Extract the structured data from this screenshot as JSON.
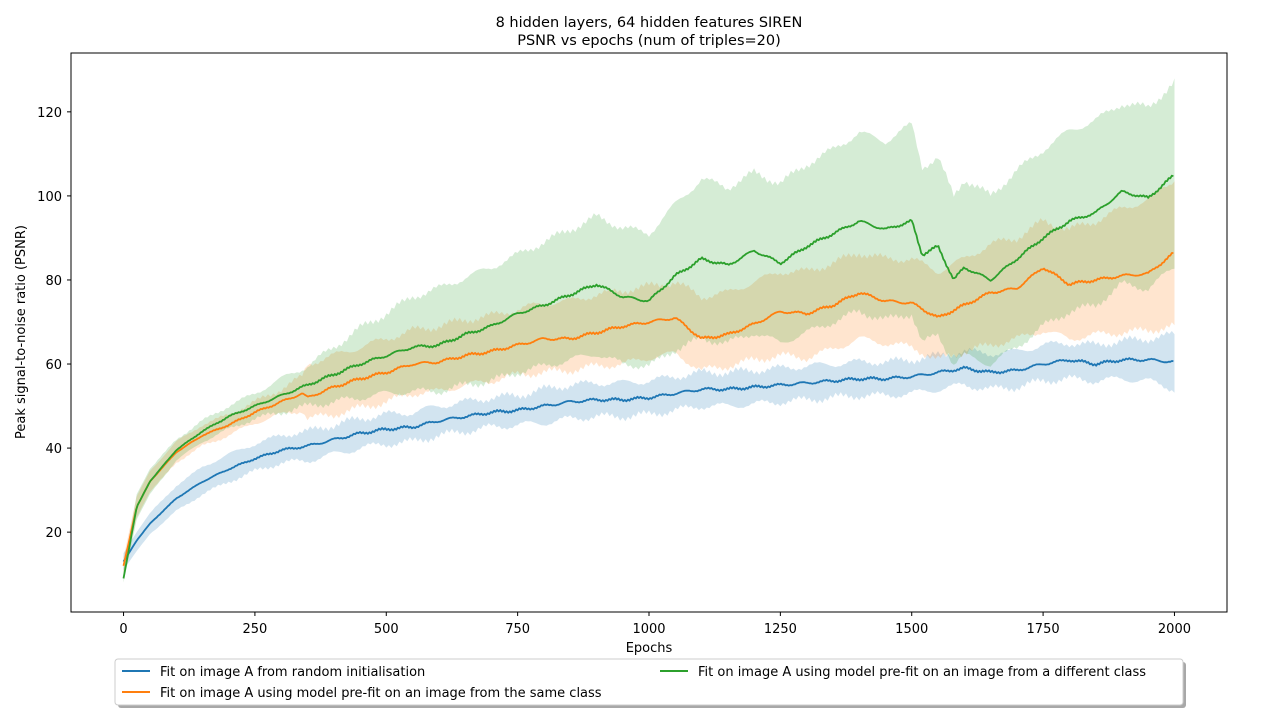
{
  "chart_data": {
    "type": "line",
    "title": "8 hidden layers, 64 hidden features SIREN",
    "subtitle": "PSNR vs epochs (num of triples=20)",
    "xlabel": "Epochs",
    "ylabel": "Peak signal-to-noise ratio (PSNR)",
    "xlim": [
      -100,
      2100
    ],
    "ylim": [
      1,
      134
    ],
    "x_ticks": [
      0,
      250,
      500,
      750,
      1000,
      1250,
      1500,
      1750,
      2000
    ],
    "y_ticks": [
      20,
      40,
      60,
      80,
      100,
      120
    ],
    "grid": false,
    "legend_position": "bottom-center",
    "series": [
      {
        "name": "Fit on image A from random initialisation",
        "color": "#1f77b4",
        "x": [
          0,
          25,
          50,
          100,
          150,
          200,
          250,
          300,
          350,
          400,
          450,
          500,
          550,
          600,
          650,
          700,
          750,
          800,
          850,
          900,
          950,
          1000,
          1050,
          1100,
          1150,
          1200,
          1250,
          1300,
          1350,
          1400,
          1450,
          1500,
          1550,
          1600,
          1650,
          1700,
          1750,
          1800,
          1850,
          1900,
          1950,
          2000
        ],
        "y": [
          13,
          18,
          22,
          28,
          32,
          35,
          37.5,
          39.5,
          40.5,
          42,
          43.5,
          44.5,
          45,
          46.5,
          47.5,
          48.5,
          49,
          50,
          51,
          51.5,
          51.5,
          52,
          53,
          54,
          54,
          54.5,
          55,
          55.5,
          56,
          56.5,
          56.5,
          57,
          58,
          59,
          58,
          58.5,
          60,
          61,
          60,
          61,
          61,
          60.5
        ],
        "band_upper": [
          15,
          20,
          24.5,
          31,
          35.5,
          38.5,
          41,
          43,
          44,
          45.5,
          47,
          48,
          48.5,
          50,
          51,
          52,
          52.5,
          54,
          55,
          55.5,
          55.5,
          56,
          57,
          58,
          58,
          58.5,
          59,
          59.5,
          60,
          60.5,
          60.5,
          61,
          62,
          63,
          62.5,
          63,
          64.5,
          65,
          64.5,
          65.5,
          66,
          67
        ],
        "band_lower": [
          11,
          15.5,
          19.5,
          25,
          29,
          32,
          34.5,
          36.5,
          37,
          38.5,
          40,
          41,
          41.5,
          43,
          44,
          45,
          45.5,
          46,
          47,
          47.5,
          47.5,
          48,
          49,
          50,
          50,
          50.5,
          51,
          51.5,
          52,
          52.5,
          52.5,
          53,
          54,
          55,
          54,
          54.5,
          56,
          56.5,
          56,
          56.5,
          56,
          54
        ]
      },
      {
        "name": "Fit on image A using model pre-fit on an image from the same class",
        "color": "#ff7f0e",
        "x": [
          0,
          25,
          50,
          100,
          150,
          200,
          250,
          300,
          340,
          350,
          400,
          450,
          500,
          550,
          600,
          650,
          700,
          750,
          800,
          850,
          900,
          950,
          1000,
          1050,
          1100,
          1150,
          1200,
          1250,
          1300,
          1350,
          1400,
          1450,
          1500,
          1550,
          1600,
          1650,
          1700,
          1750,
          1800,
          1850,
          1900,
          1950,
          2000
        ],
        "y": [
          12,
          26,
          32,
          39,
          43,
          45.5,
          48.5,
          51,
          53,
          52,
          54.5,
          56.5,
          58,
          60,
          60.5,
          62,
          63,
          64.5,
          66,
          66,
          67.5,
          69,
          70,
          71,
          66,
          67,
          69.5,
          72.5,
          72,
          74,
          77,
          75,
          74.5,
          71,
          74,
          77,
          78,
          83,
          79,
          80,
          81,
          81.5,
          86.5
        ],
        "band_upper": [
          14,
          28.5,
          34.5,
          41.5,
          45.5,
          48,
          51,
          54,
          57,
          60,
          62,
          64,
          66,
          68,
          69,
          70.5,
          71.5,
          73,
          74.5,
          75,
          76.5,
          77.5,
          78.5,
          79.5,
          76,
          77,
          79.5,
          82,
          82,
          84,
          86.5,
          85,
          85,
          82,
          85,
          88.5,
          90,
          94,
          92,
          94,
          97,
          99,
          104
        ],
        "band_lower": [
          10,
          23.5,
          29.5,
          36.5,
          40.5,
          43,
          46,
          48,
          49,
          47,
          48,
          49.5,
          51,
          53,
          53.5,
          55,
          56,
          57.5,
          58,
          58.5,
          59.5,
          60,
          61.5,
          62.5,
          58.5,
          59.5,
          61,
          62,
          61.5,
          63.5,
          66,
          65,
          64,
          61,
          63,
          64.5,
          66,
          68,
          66,
          67,
          67.5,
          68,
          69
        ]
      },
      {
        "name": "Fit on image A using model pre-fit on an image from a different class",
        "color": "#2ca02c",
        "x": [
          0,
          25,
          50,
          100,
          150,
          200,
          250,
          300,
          350,
          400,
          450,
          500,
          550,
          600,
          650,
          700,
          750,
          800,
          850,
          900,
          950,
          1000,
          1050,
          1100,
          1150,
          1200,
          1250,
          1300,
          1350,
          1400,
          1450,
          1500,
          1520,
          1550,
          1580,
          1600,
          1650,
          1700,
          1750,
          1800,
          1850,
          1900,
          1950,
          2000
        ],
        "y": [
          9,
          26,
          32,
          39.5,
          44,
          47.5,
          50,
          52.5,
          55,
          57.5,
          60,
          62,
          64,
          64.5,
          67,
          69,
          72,
          74,
          76.5,
          79,
          76,
          75,
          81,
          85,
          83.5,
          87,
          84,
          88,
          91,
          94,
          92,
          94,
          86,
          88,
          80,
          83,
          80,
          85,
          90,
          94,
          96,
          101,
          99.5,
          105
        ],
        "band_upper": [
          11,
          29,
          35,
          42,
          46.5,
          50,
          53,
          56.5,
          59.5,
          64,
          68.5,
          72,
          76,
          78,
          80.5,
          83,
          86,
          89,
          92,
          95,
          92.5,
          91,
          98,
          104,
          102,
          105.5,
          103,
          107.5,
          111,
          115,
          113,
          117,
          107,
          109,
          100,
          104,
          100,
          106,
          111,
          115.5,
          118,
          122,
          121,
          127
        ],
        "band_lower": [
          8,
          23,
          29,
          37,
          41.5,
          44.5,
          47,
          48.5,
          50,
          51,
          52,
          53,
          53.5,
          53.5,
          55,
          56,
          58,
          59.5,
          61,
          62.5,
          60,
          59.5,
          63.5,
          66,
          65,
          67.5,
          65,
          67.5,
          70,
          72.5,
          70.5,
          72,
          65,
          67,
          60,
          62,
          60,
          64,
          69,
          72.5,
          74,
          79,
          78,
          83
        ]
      }
    ]
  }
}
